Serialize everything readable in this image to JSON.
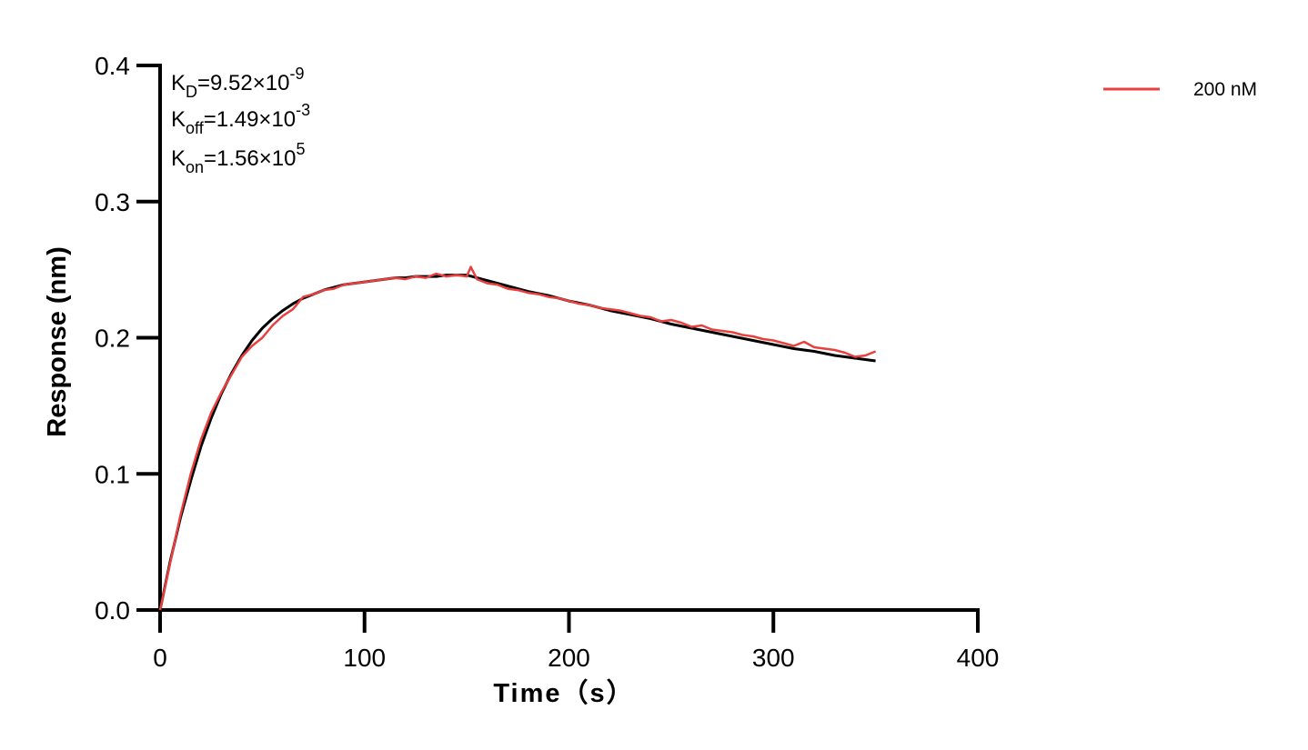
{
  "chart_data": {
    "type": "line",
    "title": "",
    "xlabel": "Time（s）",
    "ylabel": "Response (nm)",
    "xlim": [
      0,
      400
    ],
    "ylim": [
      0,
      0.4
    ],
    "x_ticks": [
      0,
      100,
      200,
      300,
      400
    ],
    "x_tick_labels": [
      "0",
      "100",
      "200",
      "300",
      "400"
    ],
    "y_ticks": [
      0,
      0.1,
      0.2,
      0.3,
      0.4
    ],
    "y_tick_labels": [
      "0.0",
      "0.1",
      "0.2",
      "0.3",
      "0.4"
    ],
    "grid": false,
    "legend_position": "top-right",
    "annotations": [
      {
        "base": "K",
        "sub": "D",
        "value": "=9.52×10",
        "exp": "-9"
      },
      {
        "base": "K",
        "sub": "off",
        "value": "=1.49×10",
        "exp": "-3"
      },
      {
        "base": "K",
        "sub": "on",
        "value": "=1.56×10",
        "exp": "5"
      }
    ],
    "association_end": 150,
    "series": [
      {
        "name": "200 nM",
        "color": "#e8403f",
        "role": "measured",
        "x": [
          0,
          5,
          10,
          15,
          20,
          25,
          30,
          35,
          40,
          45,
          50,
          55,
          60,
          65,
          70,
          75,
          80,
          85,
          90,
          95,
          100,
          105,
          110,
          115,
          120,
          125,
          130,
          135,
          140,
          145,
          150,
          152,
          155,
          160,
          165,
          170,
          175,
          180,
          185,
          190,
          195,
          200,
          205,
          210,
          215,
          220,
          225,
          230,
          235,
          240,
          245,
          250,
          255,
          260,
          265,
          270,
          275,
          280,
          285,
          290,
          295,
          300,
          305,
          310,
          315,
          320,
          325,
          330,
          335,
          340,
          345,
          350
        ],
        "y": [
          0.0,
          0.035,
          0.07,
          0.1,
          0.125,
          0.145,
          0.16,
          0.173,
          0.186,
          0.194,
          0.2,
          0.209,
          0.216,
          0.221,
          0.23,
          0.232,
          0.235,
          0.236,
          0.239,
          0.24,
          0.241,
          0.242,
          0.243,
          0.244,
          0.243,
          0.245,
          0.244,
          0.247,
          0.245,
          0.246,
          0.245,
          0.252,
          0.243,
          0.24,
          0.239,
          0.236,
          0.235,
          0.233,
          0.232,
          0.23,
          0.229,
          0.227,
          0.225,
          0.224,
          0.222,
          0.221,
          0.22,
          0.218,
          0.216,
          0.215,
          0.212,
          0.213,
          0.211,
          0.208,
          0.209,
          0.206,
          0.205,
          0.204,
          0.202,
          0.201,
          0.199,
          0.198,
          0.196,
          0.194,
          0.197,
          0.193,
          0.192,
          0.191,
          0.189,
          0.186,
          0.187,
          0.19
        ]
      },
      {
        "name": "",
        "color": "#000000",
        "role": "fit",
        "x": [
          0,
          5,
          10,
          15,
          20,
          25,
          30,
          35,
          40,
          45,
          50,
          55,
          60,
          65,
          70,
          75,
          80,
          85,
          90,
          95,
          100,
          105,
          110,
          115,
          120,
          125,
          130,
          135,
          140,
          145,
          150,
          160,
          170,
          180,
          190,
          200,
          210,
          220,
          230,
          240,
          250,
          260,
          270,
          280,
          290,
          300,
          310,
          320,
          330,
          340,
          350
        ],
        "y": [
          0.0,
          0.036,
          0.068,
          0.095,
          0.12,
          0.141,
          0.159,
          0.174,
          0.187,
          0.198,
          0.207,
          0.214,
          0.22,
          0.225,
          0.229,
          0.232,
          0.235,
          0.237,
          0.239,
          0.24,
          0.241,
          0.242,
          0.243,
          0.244,
          0.244,
          0.245,
          0.245,
          0.245,
          0.246,
          0.246,
          0.246,
          0.242,
          0.238,
          0.234,
          0.231,
          0.227,
          0.224,
          0.22,
          0.217,
          0.214,
          0.21,
          0.207,
          0.204,
          0.201,
          0.198,
          0.195,
          0.192,
          0.19,
          0.187,
          0.185,
          0.183
        ]
      }
    ]
  },
  "legend": {
    "entries": [
      {
        "label": "200 nM",
        "color": "#e8403f"
      }
    ]
  }
}
